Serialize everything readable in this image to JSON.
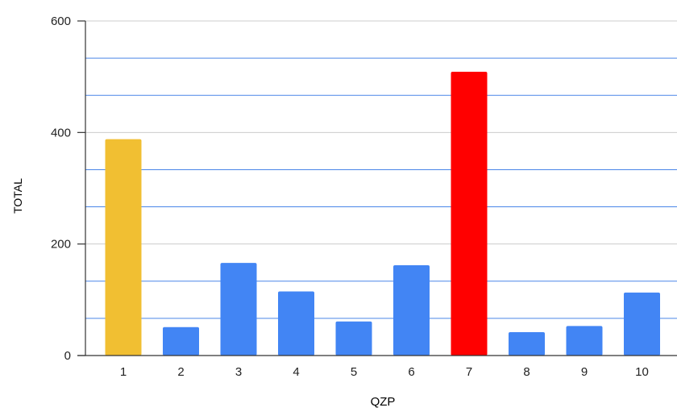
{
  "chart_data": {
    "type": "bar",
    "title": "",
    "xlabel": "QZP",
    "ylabel": "TOTAL",
    "categories": [
      "1",
      "2",
      "3",
      "4",
      "5",
      "6",
      "7",
      "8",
      "9",
      "10"
    ],
    "values": [
      388,
      51,
      166,
      115,
      61,
      162,
      509,
      42,
      53,
      113
    ],
    "bar_colors": [
      "#F1BF32",
      "#4285F4",
      "#4285F4",
      "#4285F4",
      "#4285F4",
      "#4285F4",
      "#FF0000",
      "#4285F4",
      "#4285F4",
      "#4285F4"
    ],
    "ylim": [
      0,
      600
    ],
    "y_ticks": [
      0,
      200,
      400,
      600
    ],
    "minor_gridlines": [
      66.67,
      133.33,
      266.67,
      333.33,
      466.67,
      533.33
    ],
    "grid": true,
    "major_grid_color": "#CCCCCC",
    "minor_grid_color": "#4A86E8",
    "axis_color": "#333333",
    "text_color": "#222222",
    "legend": "none"
  }
}
